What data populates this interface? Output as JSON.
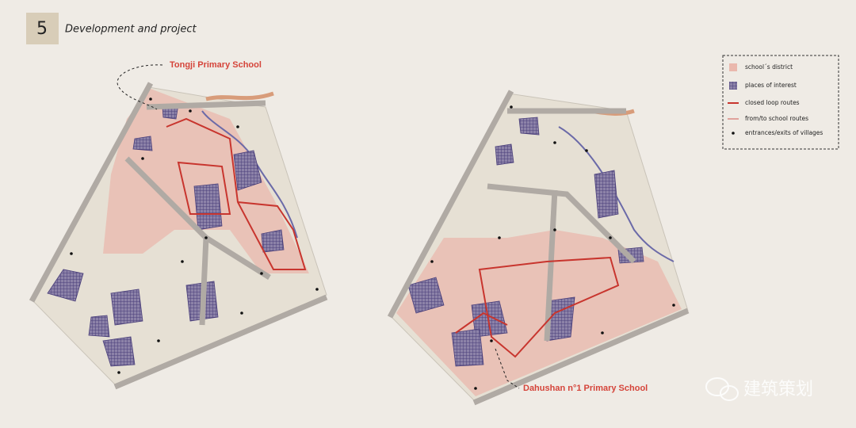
{
  "header": {
    "number": "5",
    "title": "Development and project"
  },
  "maps": [
    {
      "label": "Tongji Primary School"
    },
    {
      "label": "Dahushan n°1 Primary School"
    }
  ],
  "legend": {
    "items": [
      "school´s district",
      "places of interest",
      "closed loop routes",
      "from/to school routes",
      "entrances/exits of villages"
    ]
  },
  "watermark": "建筑策划"
}
